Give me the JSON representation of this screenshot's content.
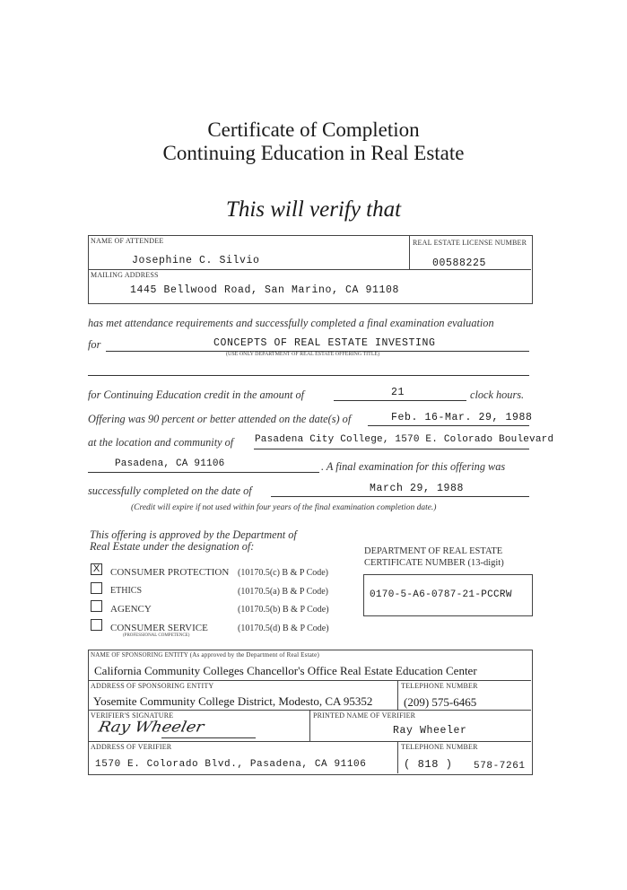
{
  "title": {
    "line1": "Certificate of Completion",
    "line2": "Continuing Education in Real Estate",
    "verify": "This will verify that"
  },
  "attendee": {
    "name_label": "NAME OF ATTENDEE",
    "name": "Josephine C. Silvio",
    "license_label": "REAL ESTATE LICENSE NUMBER",
    "license": "00588225",
    "address_label": "MAILING ADDRESS",
    "address": "1445 Bellwood Road, San Marino, CA  91108"
  },
  "body": {
    "has_met": "has met attendance requirements and successfully completed a final examination evaluation",
    "for": "for",
    "offering_title": "CONCEPTS OF REAL ESTATE INVESTING",
    "offering_caption": "(USE ONLY DEPARTMENT OF REAL ESTATE OFFERING TITLE)",
    "credit_prefix": "for Continuing Education credit in the amount of",
    "hours": "21",
    "credit_suffix": "clock hours.",
    "attend_prefix": "Offering was 90 percent or better attended on the date(s) of",
    "dates": "Feb. 16-Mar. 29, 1988",
    "location_prefix": "at the location and community of",
    "location1": "Pasadena City College, 1570 E. Colorado Boulevard",
    "location2": "Pasadena, CA  91106",
    "exam_text": ". A final examination for this offering was",
    "completed_prefix": "successfully completed on the date of",
    "exam_date": "March 29, 1988",
    "expire_note": "(Credit will expire if not used within four years of the final examination completion date.)"
  },
  "approval": {
    "text1": "This offering is approved by the Department of",
    "text2": "Real Estate under the designation of:",
    "items": [
      {
        "label": "CONSUMER PROTECTION",
        "code": "(10170.5(c) B & P Code)",
        "checked": true,
        "mark": "X"
      },
      {
        "label": "ETHICS",
        "code": "(10170.5(a) B & P Code)",
        "checked": false
      },
      {
        "label": "AGENCY",
        "code": "(10170.5(b) B & P Code)",
        "checked": false
      },
      {
        "label": "CONSUMER SERVICE",
        "code": "(10170.5(d) B & P Code)",
        "checked": false,
        "sub": "(PROFESSIONAL COMPETENCE)"
      }
    ],
    "dre_label1": "DEPARTMENT OF REAL ESTATE",
    "dre_label2": "CERTIFICATE NUMBER (13-digit)",
    "dre_number": "0170-5-A6-0787-21-PCCRW"
  },
  "sponsor": {
    "name_label": "NAME OF SPONSORING ENTITY (As approved by the Department of Real Estate)",
    "name": "California Community Colleges Chancellor's Office Real Estate Education Center",
    "address_label": "ADDRESS OF SPONSORING ENTITY",
    "address": "Yosemite Community College District, Modesto, CA 95352",
    "phone_label": "TELEPHONE NUMBER",
    "phone": "(209) 575-6465"
  },
  "verifier": {
    "signature_label": "VERIFIER'S SIGNATURE",
    "signature": "Ray Wheeler",
    "printed_label": "PRINTED NAME OF VERIFIER",
    "printed_name": "Ray Wheeler",
    "address_label": "ADDRESS OF VERIFIER",
    "address": "1570 E. Colorado Blvd., Pasadena, CA 91106",
    "phone_label": "TELEPHONE NUMBER",
    "area_code": "( 818 )",
    "phone": "578-7261"
  }
}
